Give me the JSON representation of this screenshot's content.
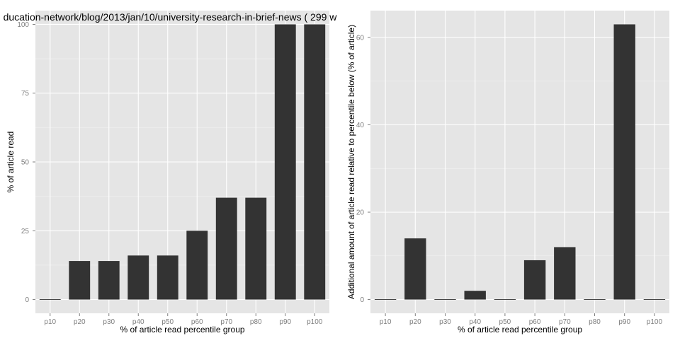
{
  "chart_data": [
    {
      "type": "bar",
      "title": "ducation-network/blog/2013/jan/10/university-research-in-brief-news ( 299 w",
      "xlabel": "% of article read percentile group",
      "ylabel": "% of article read",
      "categories": [
        "p10",
        "p20",
        "p30",
        "p40",
        "p50",
        "p60",
        "p70",
        "p80",
        "p90",
        "p100"
      ],
      "values": [
        0,
        14,
        14,
        16,
        16,
        25,
        37,
        37,
        100,
        100
      ],
      "ylim": [
        -5,
        105
      ],
      "yticks": [
        0,
        25,
        50,
        75,
        100
      ],
      "grid": true,
      "colors": {
        "panel": "#e5e5e5",
        "grid_major": "#ffffff",
        "grid_minor": "#f2f2f2",
        "bar": "#333333",
        "tick_text": "#7f7f7f",
        "label_text": "#000000"
      }
    },
    {
      "type": "bar",
      "title": "",
      "xlabel": "% of article read percentile group",
      "ylabel": "Additional amount of article read relative to percentile below (% of article)",
      "categories": [
        "p10",
        "p20",
        "p30",
        "p40",
        "p50",
        "p60",
        "p70",
        "p80",
        "p90",
        "p100"
      ],
      "values": [
        0,
        14,
        0,
        2,
        0,
        9,
        12,
        0,
        63,
        0
      ],
      "ylim": [
        -3.15,
        66.15
      ],
      "yticks": [
        0,
        20,
        40,
        60
      ],
      "grid": true,
      "colors": {
        "panel": "#e5e5e5",
        "grid_major": "#ffffff",
        "grid_minor": "#f2f2f2",
        "bar": "#333333",
        "tick_text": "#7f7f7f",
        "label_text": "#000000"
      }
    }
  ]
}
